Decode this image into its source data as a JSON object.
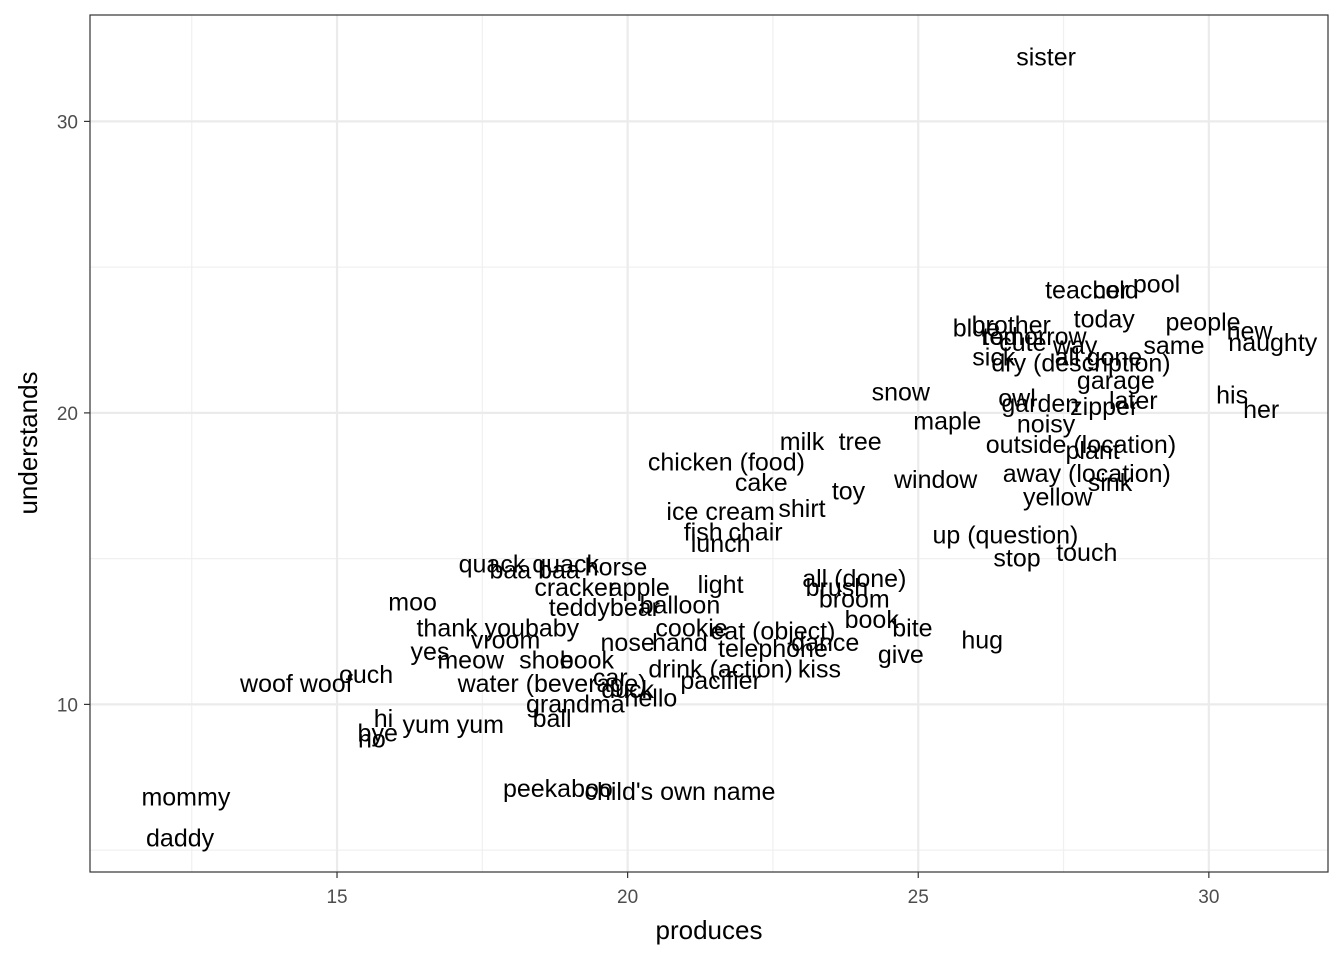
{
  "chart_data": {
    "type": "scatter",
    "title": "",
    "xlabel": "produces",
    "ylabel": "understands",
    "xlim": [
      10.75,
      32.05
    ],
    "ylim": [
      4.25,
      33.65
    ],
    "x_ticks": [
      15,
      20,
      25,
      30
    ],
    "x_tick_labels": [
      "15",
      "20",
      "25",
      "30"
    ],
    "y_ticks": [
      10,
      20,
      30
    ],
    "y_tick_labels": [
      "10",
      "20",
      "30"
    ],
    "grid": true,
    "point_style": "text-label",
    "points": [
      {
        "label": "sister",
        "x": 27.2,
        "y": 32.2
      },
      {
        "label": "teacher",
        "x": 27.9,
        "y": 24.2
      },
      {
        "label": "cold",
        "x": 28.4,
        "y": 24.2
      },
      {
        "label": "pool",
        "x": 29.1,
        "y": 24.4
      },
      {
        "label": "today",
        "x": 28.2,
        "y": 23.2
      },
      {
        "label": "people",
        "x": 29.9,
        "y": 23.1
      },
      {
        "label": "blue",
        "x": 26.0,
        "y": 22.9
      },
      {
        "label": "brother",
        "x": 26.6,
        "y": 23.0
      },
      {
        "label": "red",
        "x": 26.4,
        "y": 22.6
      },
      {
        "label": "tomorrow",
        "x": 27.0,
        "y": 22.6
      },
      {
        "label": "cute",
        "x": 26.8,
        "y": 22.4
      },
      {
        "label": "new",
        "x": 30.7,
        "y": 22.8
      },
      {
        "label": "naughty",
        "x": 31.1,
        "y": 22.4
      },
      {
        "label": "same",
        "x": 29.4,
        "y": 22.3
      },
      {
        "label": "way",
        "x": 27.7,
        "y": 22.3
      },
      {
        "label": "all gone",
        "x": 28.1,
        "y": 21.9
      },
      {
        "label": "sick",
        "x": 26.3,
        "y": 21.9
      },
      {
        "label": "dry (description)",
        "x": 27.8,
        "y": 21.7
      },
      {
        "label": "garage",
        "x": 28.4,
        "y": 21.1
      },
      {
        "label": "snow",
        "x": 24.7,
        "y": 20.7
      },
      {
        "label": "later",
        "x": 28.7,
        "y": 20.4
      },
      {
        "label": "his",
        "x": 30.4,
        "y": 20.6
      },
      {
        "label": "her",
        "x": 30.9,
        "y": 20.1
      },
      {
        "label": "owl",
        "x": 26.7,
        "y": 20.5
      },
      {
        "label": "zipper",
        "x": 28.2,
        "y": 20.2
      },
      {
        "label": "garden",
        "x": 27.1,
        "y": 20.3
      },
      {
        "label": "maple",
        "x": 25.5,
        "y": 19.7
      },
      {
        "label": "noisy",
        "x": 27.2,
        "y": 19.6
      },
      {
        "label": "plant",
        "x": 28.0,
        "y": 18.7
      },
      {
        "label": "milk",
        "x": 23.0,
        "y": 19.0
      },
      {
        "label": "tree",
        "x": 24.0,
        "y": 19.0
      },
      {
        "label": "outside (location)",
        "x": 27.8,
        "y": 18.9
      },
      {
        "label": "chicken (food)",
        "x": 21.7,
        "y": 18.3
      },
      {
        "label": "away (location)",
        "x": 27.9,
        "y": 17.9
      },
      {
        "label": "cake",
        "x": 22.3,
        "y": 17.6
      },
      {
        "label": "window",
        "x": 25.3,
        "y": 17.7
      },
      {
        "label": "sink",
        "x": 28.3,
        "y": 17.6
      },
      {
        "label": "yellow",
        "x": 27.4,
        "y": 17.1
      },
      {
        "label": "toy",
        "x": 23.8,
        "y": 17.3
      },
      {
        "label": "ice cream",
        "x": 21.6,
        "y": 16.6
      },
      {
        "label": "shirt",
        "x": 23.0,
        "y": 16.7
      },
      {
        "label": "fish",
        "x": 21.3,
        "y": 15.9
      },
      {
        "label": "chair",
        "x": 22.2,
        "y": 15.9
      },
      {
        "label": "up (question)",
        "x": 26.5,
        "y": 15.8
      },
      {
        "label": "touch",
        "x": 27.9,
        "y": 15.2
      },
      {
        "label": "stop",
        "x": 26.7,
        "y": 15.0
      },
      {
        "label": "lunch",
        "x": 21.6,
        "y": 15.5
      },
      {
        "label": "quack quack",
        "x": 18.3,
        "y": 14.8
      },
      {
        "label": "baa baa",
        "x": 18.4,
        "y": 14.6
      },
      {
        "label": "horse",
        "x": 19.8,
        "y": 14.7
      },
      {
        "label": "cracker",
        "x": 19.1,
        "y": 14.0
      },
      {
        "label": "apple",
        "x": 20.2,
        "y": 14.0
      },
      {
        "label": "light",
        "x": 21.6,
        "y": 14.1
      },
      {
        "label": "brush",
        "x": 23.6,
        "y": 14.0
      },
      {
        "label": "all (done)",
        "x": 23.9,
        "y": 14.3
      },
      {
        "label": "teddybear",
        "x": 19.6,
        "y": 13.3
      },
      {
        "label": "balloon",
        "x": 20.9,
        "y": 13.4
      },
      {
        "label": "broom",
        "x": 23.9,
        "y": 13.6
      },
      {
        "label": "moo",
        "x": 16.3,
        "y": 13.5
      },
      {
        "label": "thank you",
        "x": 17.3,
        "y": 12.6
      },
      {
        "label": "baby",
        "x": 18.7,
        "y": 12.6
      },
      {
        "label": "cookie",
        "x": 21.1,
        "y": 12.6
      },
      {
        "label": "book",
        "x": 24.2,
        "y": 12.9
      },
      {
        "label": "bite",
        "x": 24.9,
        "y": 12.6
      },
      {
        "label": "eat (object)",
        "x": 22.5,
        "y": 12.5
      },
      {
        "label": "vroom",
        "x": 17.9,
        "y": 12.2
      },
      {
        "label": "nose",
        "x": 20.0,
        "y": 12.1
      },
      {
        "label": "hand",
        "x": 20.9,
        "y": 12.1
      },
      {
        "label": "telephone",
        "x": 22.5,
        "y": 11.9
      },
      {
        "label": "dance",
        "x": 23.4,
        "y": 12.1
      },
      {
        "label": "hug",
        "x": 26.1,
        "y": 12.2
      },
      {
        "label": "give",
        "x": 24.7,
        "y": 11.7
      },
      {
        "label": "yes",
        "x": 16.6,
        "y": 11.8
      },
      {
        "label": "meow",
        "x": 17.3,
        "y": 11.5
      },
      {
        "label": "shoe",
        "x": 18.6,
        "y": 11.5
      },
      {
        "label": "book",
        "x": 19.3,
        "y": 11.5
      },
      {
        "label": "drink (action)",
        "x": 21.6,
        "y": 11.2
      },
      {
        "label": "kiss",
        "x": 23.3,
        "y": 11.2
      },
      {
        "label": "car",
        "x": 19.7,
        "y": 10.9
      },
      {
        "label": "pacifier",
        "x": 21.6,
        "y": 10.8
      },
      {
        "label": "water (beverage)",
        "x": 18.7,
        "y": 10.7
      },
      {
        "label": "duck",
        "x": 20.0,
        "y": 10.5
      },
      {
        "label": "ouch",
        "x": 15.5,
        "y": 11.0
      },
      {
        "label": "woof woof",
        "x": 14.3,
        "y": 10.7
      },
      {
        "label": "hello",
        "x": 20.4,
        "y": 10.2
      },
      {
        "label": "grandma",
        "x": 19.1,
        "y": 10.0
      },
      {
        "label": "ball",
        "x": 18.7,
        "y": 9.5
      },
      {
        "label": "hi",
        "x": 15.8,
        "y": 9.5
      },
      {
        "label": "yum yum",
        "x": 17.0,
        "y": 9.3
      },
      {
        "label": "bye",
        "x": 15.7,
        "y": 9.0
      },
      {
        "label": "no",
        "x": 15.6,
        "y": 8.8
      },
      {
        "label": "peekaboo",
        "x": 18.8,
        "y": 7.1
      },
      {
        "label": "child's own name",
        "x": 20.9,
        "y": 7.0
      },
      {
        "label": "mommy",
        "x": 12.4,
        "y": 6.8
      },
      {
        "label": "daddy",
        "x": 12.3,
        "y": 5.4
      }
    ]
  }
}
